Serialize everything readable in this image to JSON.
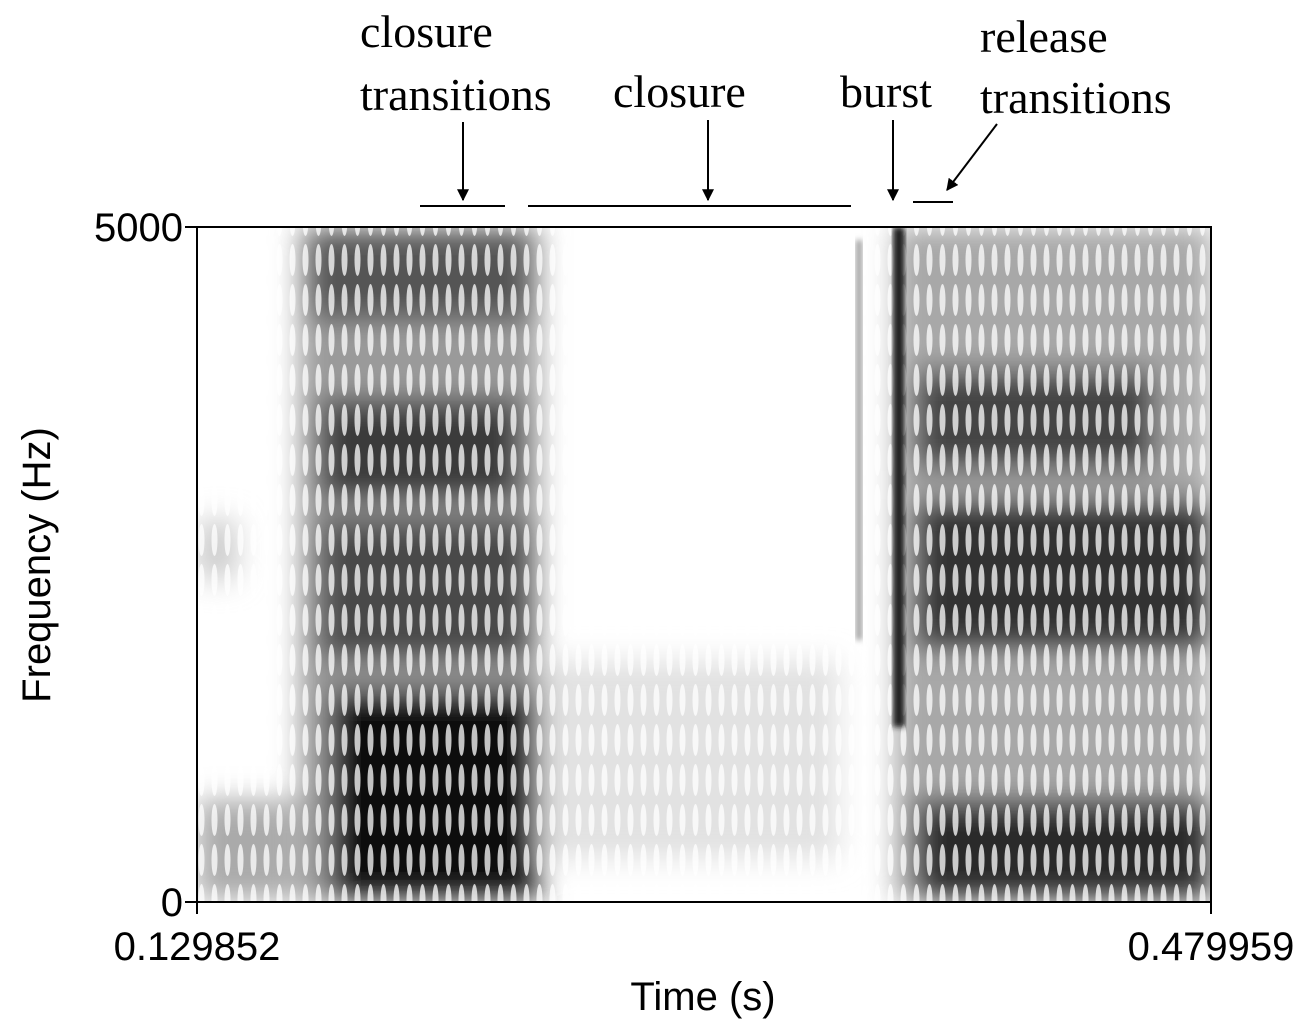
{
  "chart_data": {
    "type": "spectrogram",
    "x_label": "Time (s)",
    "y_label": "Frequency (Hz)",
    "xlim": [
      0.129852,
      0.479959
    ],
    "xticks": [
      0.129852,
      0.479959
    ],
    "ylim": [
      0,
      5000
    ],
    "yticks": [
      0,
      5000
    ],
    "annotations": [
      {
        "lines": [
          "closure",
          "transitions"
        ]
      },
      {
        "lines": [
          "closure"
        ]
      },
      {
        "lines": [
          "burst"
        ]
      },
      {
        "lines": [
          "release",
          "transitions"
        ]
      }
    ]
  }
}
